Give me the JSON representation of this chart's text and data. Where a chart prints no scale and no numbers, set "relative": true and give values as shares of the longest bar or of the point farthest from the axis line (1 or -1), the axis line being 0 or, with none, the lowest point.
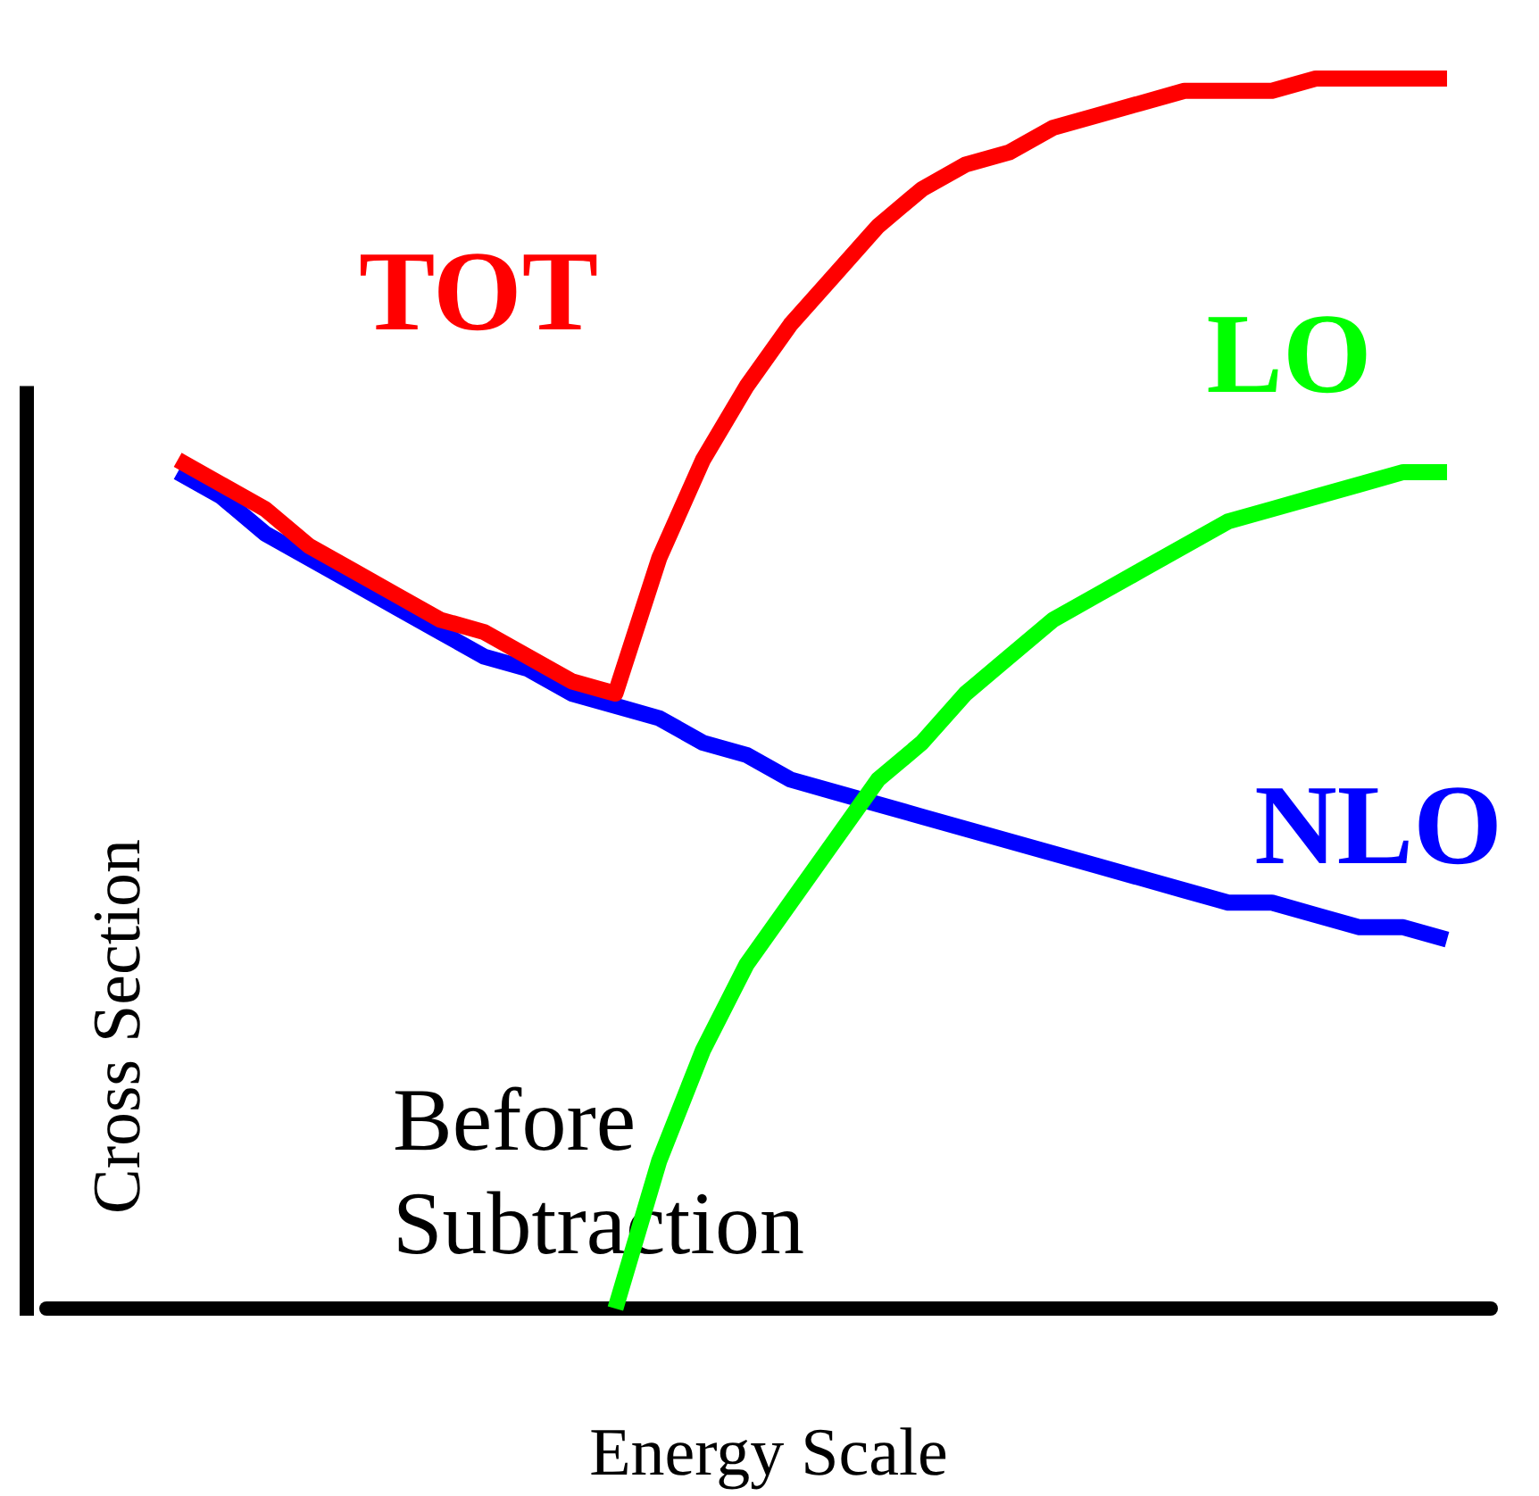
{
  "chart_data": {
    "type": "line",
    "relative": true,
    "xlabel": "Energy Scale",
    "ylabel": "Cross Section",
    "annotations": [
      "Before Subtraction"
    ],
    "legend": false,
    "marker": "none",
    "categories": [
      null,
      null,
      null,
      null,
      null,
      null,
      null,
      null,
      null,
      null,
      null,
      null,
      null,
      null,
      null,
      null,
      null,
      null,
      null,
      null,
      null,
      null,
      null,
      null,
      null,
      null,
      null,
      null,
      null,
      null,
      null,
      null,
      null,
      null
    ],
    "series": [
      {
        "name": "NLO",
        "color": "#0000ff",
        "values": [
          null,
          null,
          null,
          0.68,
          0.66,
          0.63,
          0.61,
          0.59,
          0.57,
          0.55,
          0.53,
          0.52,
          0.5,
          0.49,
          0.48,
          0.46,
          0.45,
          0.43,
          0.42,
          0.41,
          0.4,
          0.39,
          0.38,
          0.37,
          0.36,
          0.35,
          0.34,
          0.33,
          0.33,
          0.32,
          0.31,
          0.31,
          0.3,
          null
        ]
      },
      {
        "name": "LO",
        "color": "#00ff00",
        "values": [
          null,
          null,
          null,
          null,
          null,
          null,
          null,
          null,
          null,
          null,
          null,
          null,
          null,
          0,
          0.12,
          0.21,
          0.28,
          0.33,
          0.38,
          0.43,
          0.46,
          0.5,
          0.53,
          0.56,
          0.58,
          0.6,
          0.62,
          0.64,
          0.65,
          0.66,
          0.67,
          0.68,
          0.68,
          null
        ]
      },
      {
        "name": "TOT",
        "color": "#ff0000",
        "values": [
          null,
          null,
          null,
          0.69,
          0.67,
          0.65,
          0.62,
          0.6,
          0.58,
          0.56,
          0.55,
          0.53,
          0.51,
          0.5,
          0.61,
          0.69,
          0.75,
          0.8,
          0.84,
          0.88,
          0.91,
          0.93,
          0.94,
          0.96,
          0.97,
          0.98,
          0.99,
          0.99,
          0.99,
          1.0,
          1.0,
          1.0,
          1,
          null
        ]
      }
    ]
  }
}
